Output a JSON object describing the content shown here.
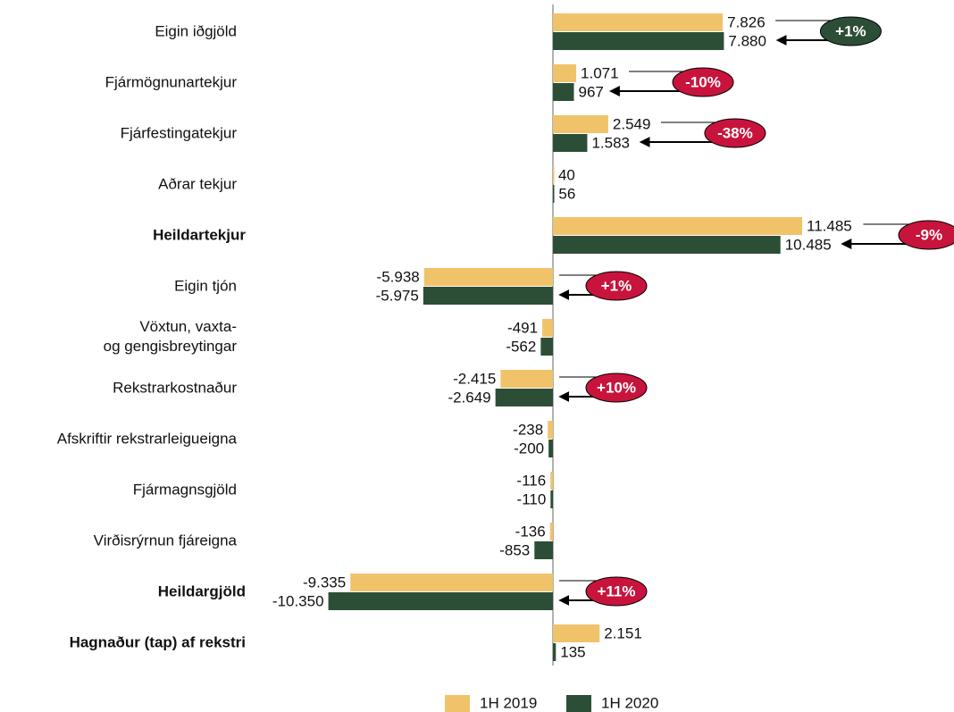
{
  "chart_data": {
    "type": "bar",
    "orientation": "horizontal",
    "categories": [
      "Eigin iðgjöld",
      "Fjármögnunartekjur",
      "Fjárfestingatekjur",
      "Aðrar tekjur",
      "Heildartekjur",
      "Eigin tjón",
      "Vöxtun, vaxta-\nog gengisbreytingar",
      "Rekstrarkostnaður",
      "Afskriftir rekstrarleigueigna",
      "Fjármagnsgjöld",
      "Virðisrýrnun fjáreigna",
      "Heildargjöld",
      "Hagnaður (tap) af rekstri"
    ],
    "bold_categories": [
      4,
      11,
      12
    ],
    "series": [
      {
        "name": "1H 2019",
        "color": "#f0c36b",
        "values": [
          7826,
          1071,
          2549,
          40,
          11485,
          -5938,
          -491,
          -2415,
          -238,
          -116,
          -136,
          -9335,
          2151
        ],
        "value_labels": [
          "7.826",
          "1.071",
          "2.549",
          "40",
          "11.485",
          "-5.938",
          "-491",
          "-2.415",
          "-238",
          "-116",
          "-136",
          "-9.335",
          "2.151"
        ]
      },
      {
        "name": "1H 2020",
        "color": "#2d4e36",
        "values": [
          7880,
          967,
          1583,
          56,
          10485,
          -5975,
          -562,
          -2649,
          -200,
          -110,
          -853,
          -10350,
          135
        ],
        "value_labels": [
          "7.880",
          "967",
          "1.583",
          "56",
          "10.485",
          "-5.975",
          "-562",
          "-2.649",
          "-200",
          "-110",
          "-853",
          "-10.350",
          "135"
        ]
      }
    ],
    "change_labels": [
      "+1%",
      "-10%",
      "-38%",
      null,
      "-9%",
      "+1%",
      null,
      "+10%",
      null,
      null,
      null,
      "+11%",
      null
    ],
    "change_colors": [
      "#2d4e36",
      "#c8143c",
      "#c8143c",
      null,
      "#c8143c",
      "#c8143c",
      null,
      "#c8143c",
      null,
      null,
      null,
      "#c8143c",
      null
    ]
  }
}
